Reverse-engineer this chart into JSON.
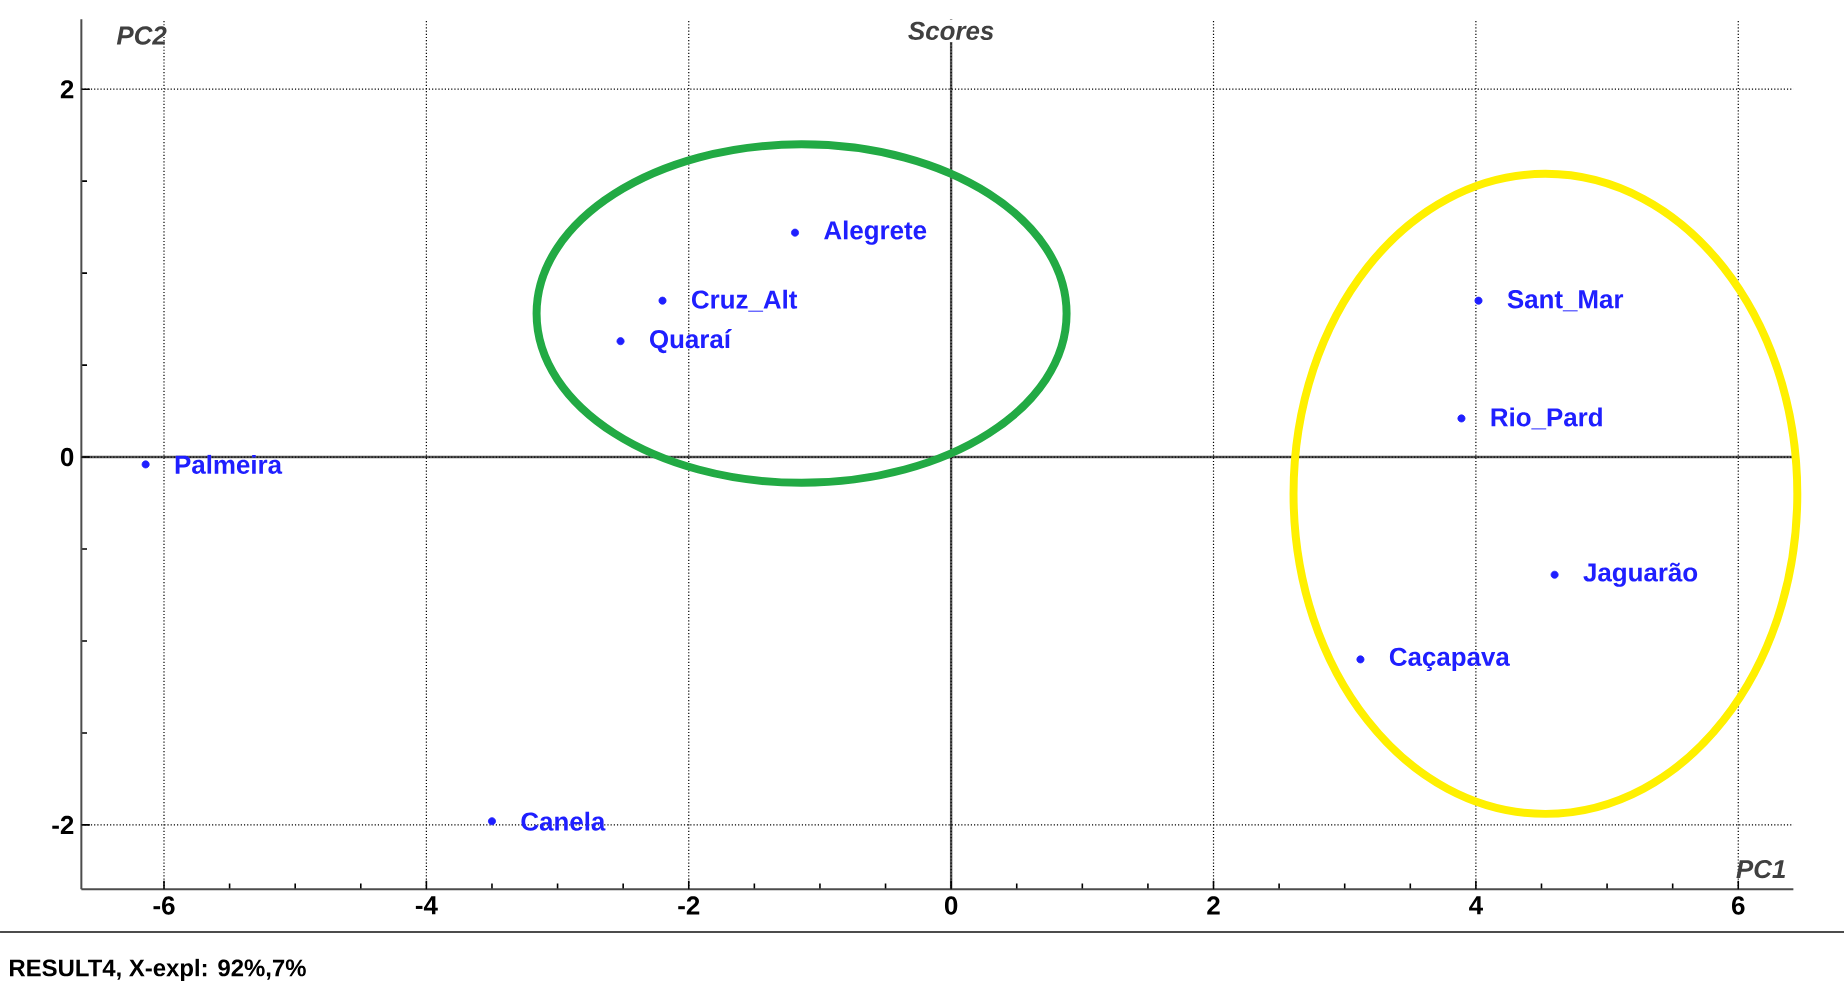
{
  "chart_data": {
    "type": "scatter",
    "title": "Scores",
    "xlabel": "PC1",
    "ylabel": "PC2",
    "x": [
      -6.14,
      -1.19,
      -2.2,
      -2.52,
      -3.5,
      4.02,
      3.89,
      4.6,
      3.12
    ],
    "series": [
      {
        "color": "#1f1fff",
        "values": [
          -0.04,
          1.22,
          0.85,
          0.63,
          -1.98,
          0.85,
          0.21,
          -0.64,
          -1.1
        ]
      }
    ],
    "xlim": [
      -6.63,
      6.42
    ],
    "ylim": [
      -2.35,
      2.38
    ],
    "xticks": [
      -6,
      -4,
      -2,
      0,
      2,
      4,
      6
    ],
    "yticks": [
      -2,
      0,
      2
    ],
    "grid": true,
    "annotations": [
      {
        "text": "Palmeira",
        "x": -6.14,
        "y": -0.04
      },
      {
        "text": "Alegrete",
        "x": -1.19,
        "y": 1.22
      },
      {
        "text": "Cruz_Alt",
        "x": -2.2,
        "y": 0.85
      },
      {
        "text": "Quaraí",
        "x": -2.52,
        "y": 0.63
      },
      {
        "text": "Canela",
        "x": -3.5,
        "y": -1.98
      },
      {
        "text": "Sant_Mar",
        "x": 4.02,
        "y": 0.85
      },
      {
        "text": "Rio_Pard",
        "x": 3.89,
        "y": 0.21
      },
      {
        "text": "Jaguarão",
        "x": 4.6,
        "y": -0.64
      },
      {
        "text": "Caçapava",
        "x": 3.12,
        "y": -1.1
      },
      "RESULT4, X-expl: 92%,7%"
    ]
  }
}
